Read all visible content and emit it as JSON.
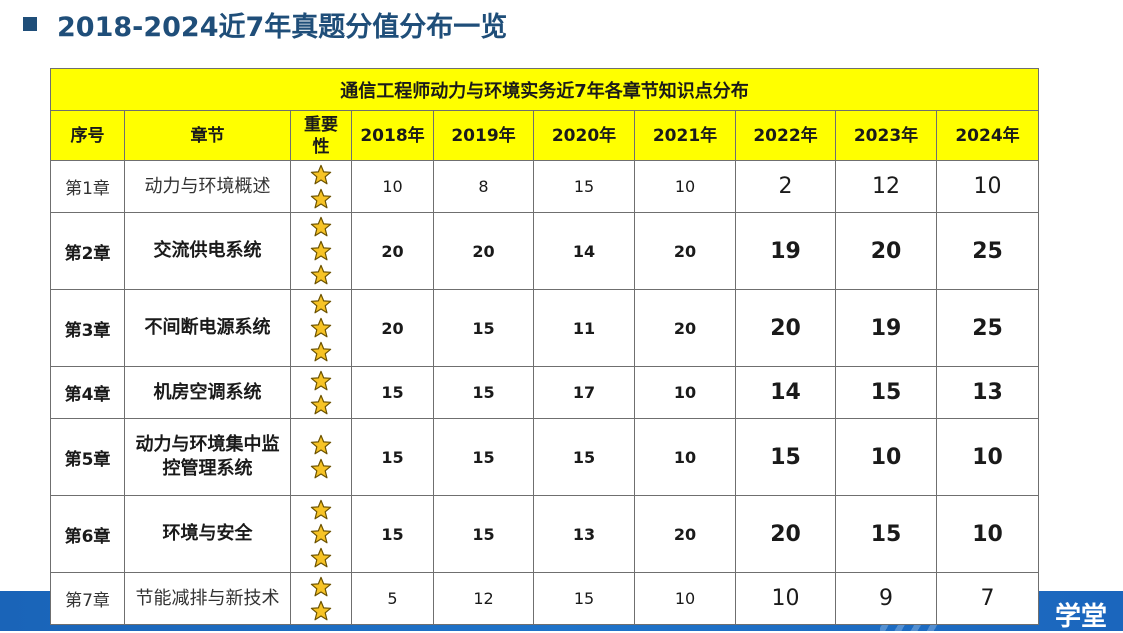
{
  "title": "2018-2024近7年真题分值分布一览",
  "footer_brand": "学堂",
  "colors": {
    "title": "#1f4e79",
    "header_bg": "#ffff00",
    "star_fill": "#f7c325",
    "star_stroke": "#6b5200",
    "footer": "#1f6fc5"
  },
  "table": {
    "caption": "通信工程师动力与环境实务近7年各章节知识点分布",
    "headers": {
      "seq": "序号",
      "chapter": "章节",
      "importance": "重要性",
      "y2018": "2018年",
      "y2019": "2019年",
      "y2020": "2020年",
      "y2021": "2021年",
      "y2022": "2022年",
      "y2023": "2023年",
      "y2024": "2024年"
    },
    "rows": [
      {
        "seq": "第1章",
        "chapter": "动力与环境概述",
        "stars": 2,
        "y2018": "10",
        "y2019": "8",
        "y2020": "15",
        "y2021": "10",
        "y2022": "2",
        "y2023": "12",
        "y2024": "10"
      },
      {
        "seq": "第2章",
        "chapter": "交流供电系统",
        "stars": 3,
        "y2018": "20",
        "y2019": "20",
        "y2020": "14",
        "y2021": "20",
        "y2022": "19",
        "y2023": "20",
        "y2024": "25"
      },
      {
        "seq": "第3章",
        "chapter": "不间断电源系统",
        "stars": 3,
        "y2018": "20",
        "y2019": "15",
        "y2020": "11",
        "y2021": "20",
        "y2022": "20",
        "y2023": "19",
        "y2024": "25"
      },
      {
        "seq": "第4章",
        "chapter": "机房空调系统",
        "stars": 2,
        "y2018": "15",
        "y2019": "15",
        "y2020": "17",
        "y2021": "10",
        "y2022": "14",
        "y2023": "15",
        "y2024": "13"
      },
      {
        "seq": "第5章",
        "chapter": "动力与环境集中监控管理系统",
        "stars": 2,
        "y2018": "15",
        "y2019": "15",
        "y2020": "15",
        "y2021": "10",
        "y2022": "15",
        "y2023": "10",
        "y2024": "10"
      },
      {
        "seq": "第6章",
        "chapter": "环境与安全",
        "stars": 3,
        "y2018": "15",
        "y2019": "15",
        "y2020": "13",
        "y2021": "20",
        "y2022": "20",
        "y2023": "15",
        "y2024": "10"
      },
      {
        "seq": "第7章",
        "chapter": "节能减排与新技术",
        "stars": 2,
        "y2018": "5",
        "y2019": "12",
        "y2020": "15",
        "y2021": "10",
        "y2022": "10",
        "y2023": "9",
        "y2024": "7"
      }
    ]
  }
}
